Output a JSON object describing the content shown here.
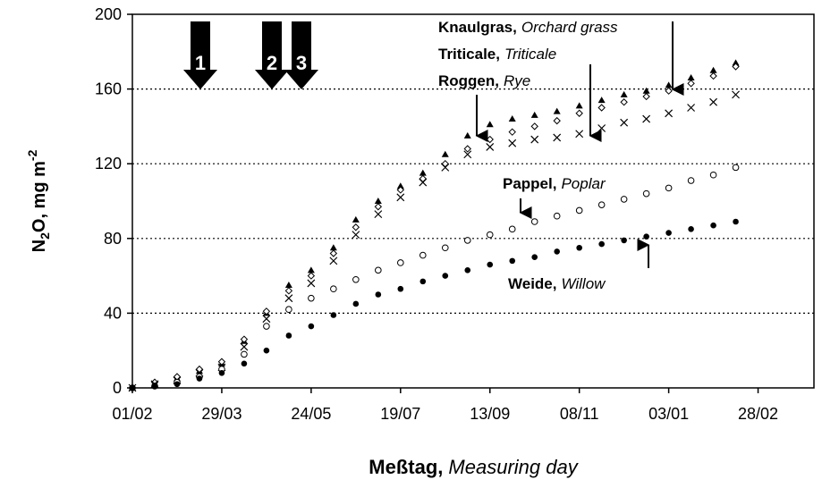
{
  "chart_data": {
    "type": "scatter",
    "xlabel": {
      "bold": "Meßtag,",
      "italic": "Measuring day"
    },
    "ylabel": {
      "parts": [
        "N",
        "2",
        "O, mg m",
        "-2"
      ]
    },
    "x": [
      "01/02",
      "15/02",
      "01/03",
      "15/03",
      "29/03",
      "12/04",
      "26/04",
      "10/05",
      "24/05",
      "07/06",
      "21/06",
      "05/07",
      "19/07",
      "02/08",
      "16/08",
      "30/08",
      "13/09",
      "27/09",
      "11/10",
      "25/10",
      "08/11",
      "22/11",
      "06/12",
      "20/12",
      "03/01",
      "17/01",
      "31/01",
      "14/02"
    ],
    "series": [
      {
        "name": "Knaulgras,",
        "name_en": "Orchard grass",
        "marker": "triangle",
        "color": "#000000",
        "values": [
          0,
          2,
          5,
          9,
          13,
          25,
          40,
          55,
          63,
          75,
          90,
          100,
          108,
          115,
          125,
          135,
          141,
          144,
          146,
          148,
          151,
          154,
          157,
          159,
          162,
          166,
          170,
          174
        ]
      },
      {
        "name": "Triticale,",
        "name_en": "Triticale",
        "marker": "diamond",
        "color": "#000000",
        "values": [
          0,
          3,
          6,
          10,
          14,
          26,
          41,
          52,
          60,
          72,
          86,
          97,
          106,
          112,
          120,
          128,
          133,
          137,
          140,
          143,
          147,
          150,
          153,
          156,
          159,
          163,
          167,
          172
        ]
      },
      {
        "name": "Roggen,",
        "name_en": "Rye",
        "marker": "cross",
        "color": "#000000",
        "values": [
          0,
          2,
          4,
          8,
          11,
          22,
          37,
          48,
          56,
          68,
          82,
          93,
          102,
          110,
          118,
          125,
          129,
          131,
          133,
          134,
          136,
          139,
          142,
          144,
          147,
          150,
          153,
          157
        ]
      },
      {
        "name": "Pappel,",
        "name_en": "Poplar",
        "marker": "circle-open",
        "color": "#000000",
        "values": [
          0,
          1,
          3,
          6,
          10,
          18,
          33,
          42,
          48,
          53,
          58,
          63,
          67,
          71,
          75,
          79,
          82,
          85,
          89,
          92,
          95,
          98,
          101,
          104,
          107,
          111,
          114,
          118
        ]
      },
      {
        "name": "Weide,",
        "name_en": "Willow",
        "marker": "circle",
        "color": "#000000",
        "values": [
          0,
          1,
          2,
          5,
          8,
          13,
          20,
          28,
          33,
          39,
          45,
          50,
          53,
          57,
          60,
          63,
          66,
          68,
          70,
          73,
          75,
          77,
          79,
          81,
          83,
          85,
          87,
          89
        ]
      }
    ],
    "events": [
      "1",
      "2",
      "3"
    ],
    "xlim": [
      "01/02",
      "04/04"
    ],
    "xticks": [
      "01/02",
      "29/03",
      "24/05",
      "19/07",
      "13/09",
      "08/11",
      "03/01",
      "28/02"
    ],
    "ylim": [
      0,
      200
    ],
    "yticks": [
      0,
      40,
      80,
      120,
      160,
      200
    ],
    "grid": true
  }
}
